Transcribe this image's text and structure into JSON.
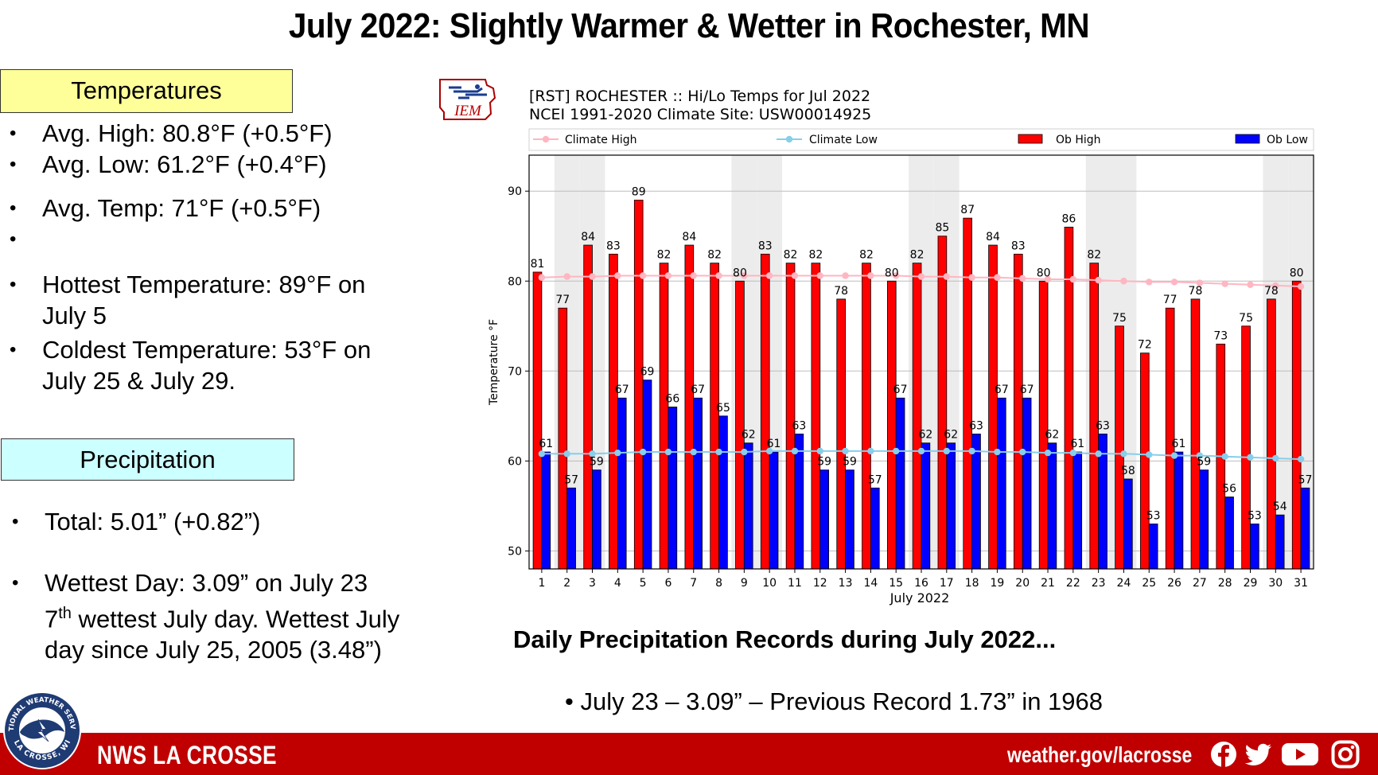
{
  "header": {
    "title": "July 2022:  Slightly Warmer & Wetter in Rochester, MN"
  },
  "temperatures": {
    "heading": "Temperatures",
    "avg_high": "Avg. High:  80.8°F (+0.5°F)",
    "avg_low": "Avg. Low:  61.2°F (+0.4°F)",
    "avg_temp": "Avg. Temp:  71°F (+0.5°F)",
    "hottest": "Hottest Temperature: 89°F on July 5",
    "coldest": "Coldest Temperature: 53°F on July 25 & July 29."
  },
  "precipitation": {
    "heading": "Precipitation",
    "total": "Total:  5.01” (+0.82”)",
    "wettest_line1": "Wettest Day: 3.09” on July 23",
    "wettest_rank_num": "7",
    "wettest_rank_sup": "th",
    "wettest_rest": " wettest July day. Wettest July day since July 25, 2005 (3.48”)"
  },
  "records": {
    "title": "Daily Precipitation Records during July 2022...",
    "item": "• July 23 – 3.09” – Previous Record 1.73” in 1968"
  },
  "logo_iem": {
    "text": "IEM"
  },
  "footer": {
    "left": "NWS LA CROSSE",
    "right": "weather.gov/lacrosse",
    "icons": [
      "facebook-icon",
      "twitter-icon",
      "youtube-icon",
      "instagram-icon"
    ]
  },
  "nws_seal": {
    "text_top": "NATIONAL WEATHER SERVICE",
    "text_bottom": "LA CROSSE, WI"
  },
  "chart_data": {
    "type": "bar",
    "title": "[RST] ROCHESTER :: Hi/Lo Temps for Jul 2022",
    "subtitle": "NCEI 1991-2020 Climate Site: USW00014925",
    "xlabel": "July 2022",
    "ylabel": "Temperature °F",
    "ylim": [
      48,
      94
    ],
    "yticks": [
      50,
      60,
      70,
      80,
      90
    ],
    "grid": true,
    "legend_placement": "top",
    "categories": [
      "1",
      "2",
      "3",
      "4",
      "5",
      "6",
      "7",
      "8",
      "9",
      "10",
      "11",
      "12",
      "13",
      "14",
      "15",
      "16",
      "17",
      "18",
      "19",
      "20",
      "21",
      "22",
      "23",
      "24",
      "25",
      "26",
      "27",
      "28",
      "29",
      "30",
      "31"
    ],
    "weekend_days": [
      2,
      3,
      9,
      10,
      16,
      17,
      23,
      24,
      30,
      31
    ],
    "series": [
      {
        "name": "Climate High",
        "type": "line",
        "color": "#ffb6c1",
        "values": [
          80.4,
          80.5,
          80.5,
          80.6,
          80.6,
          80.6,
          80.6,
          80.6,
          80.6,
          80.6,
          80.6,
          80.6,
          80.6,
          80.6,
          80.6,
          80.5,
          80.5,
          80.4,
          80.4,
          80.3,
          80.2,
          80.2,
          80.1,
          80.0,
          79.9,
          79.9,
          79.8,
          79.7,
          79.6,
          79.5,
          79.4
        ]
      },
      {
        "name": "Climate Low",
        "type": "line",
        "color": "#87ceeb",
        "values": [
          60.8,
          60.8,
          60.8,
          60.9,
          61.0,
          61.0,
          61.0,
          61.0,
          61.0,
          61.1,
          61.1,
          61.1,
          61.1,
          61.1,
          61.1,
          61.1,
          61.1,
          61.1,
          61.0,
          61.0,
          60.9,
          60.9,
          60.8,
          60.8,
          60.7,
          60.6,
          60.6,
          60.5,
          60.4,
          60.3,
          60.2
        ]
      },
      {
        "name": "Ob High",
        "type": "bar",
        "color": "#ff0000",
        "values": [
          81,
          77,
          84,
          83,
          89,
          82,
          84,
          82,
          80,
          83,
          82,
          82,
          78,
          82,
          80,
          82,
          85,
          87,
          84,
          83,
          80,
          86,
          82,
          75,
          72,
          77,
          78,
          73,
          75,
          78,
          80
        ]
      },
      {
        "name": "Ob Low",
        "type": "bar",
        "color": "#0000ff",
        "values": [
          61,
          57,
          59,
          67,
          69,
          66,
          67,
          65,
          62,
          61,
          63,
          59,
          59,
          57,
          67,
          62,
          62,
          63,
          67,
          67,
          62,
          61,
          63,
          58,
          53,
          61,
          59,
          56,
          53,
          54,
          57
        ]
      }
    ]
  }
}
